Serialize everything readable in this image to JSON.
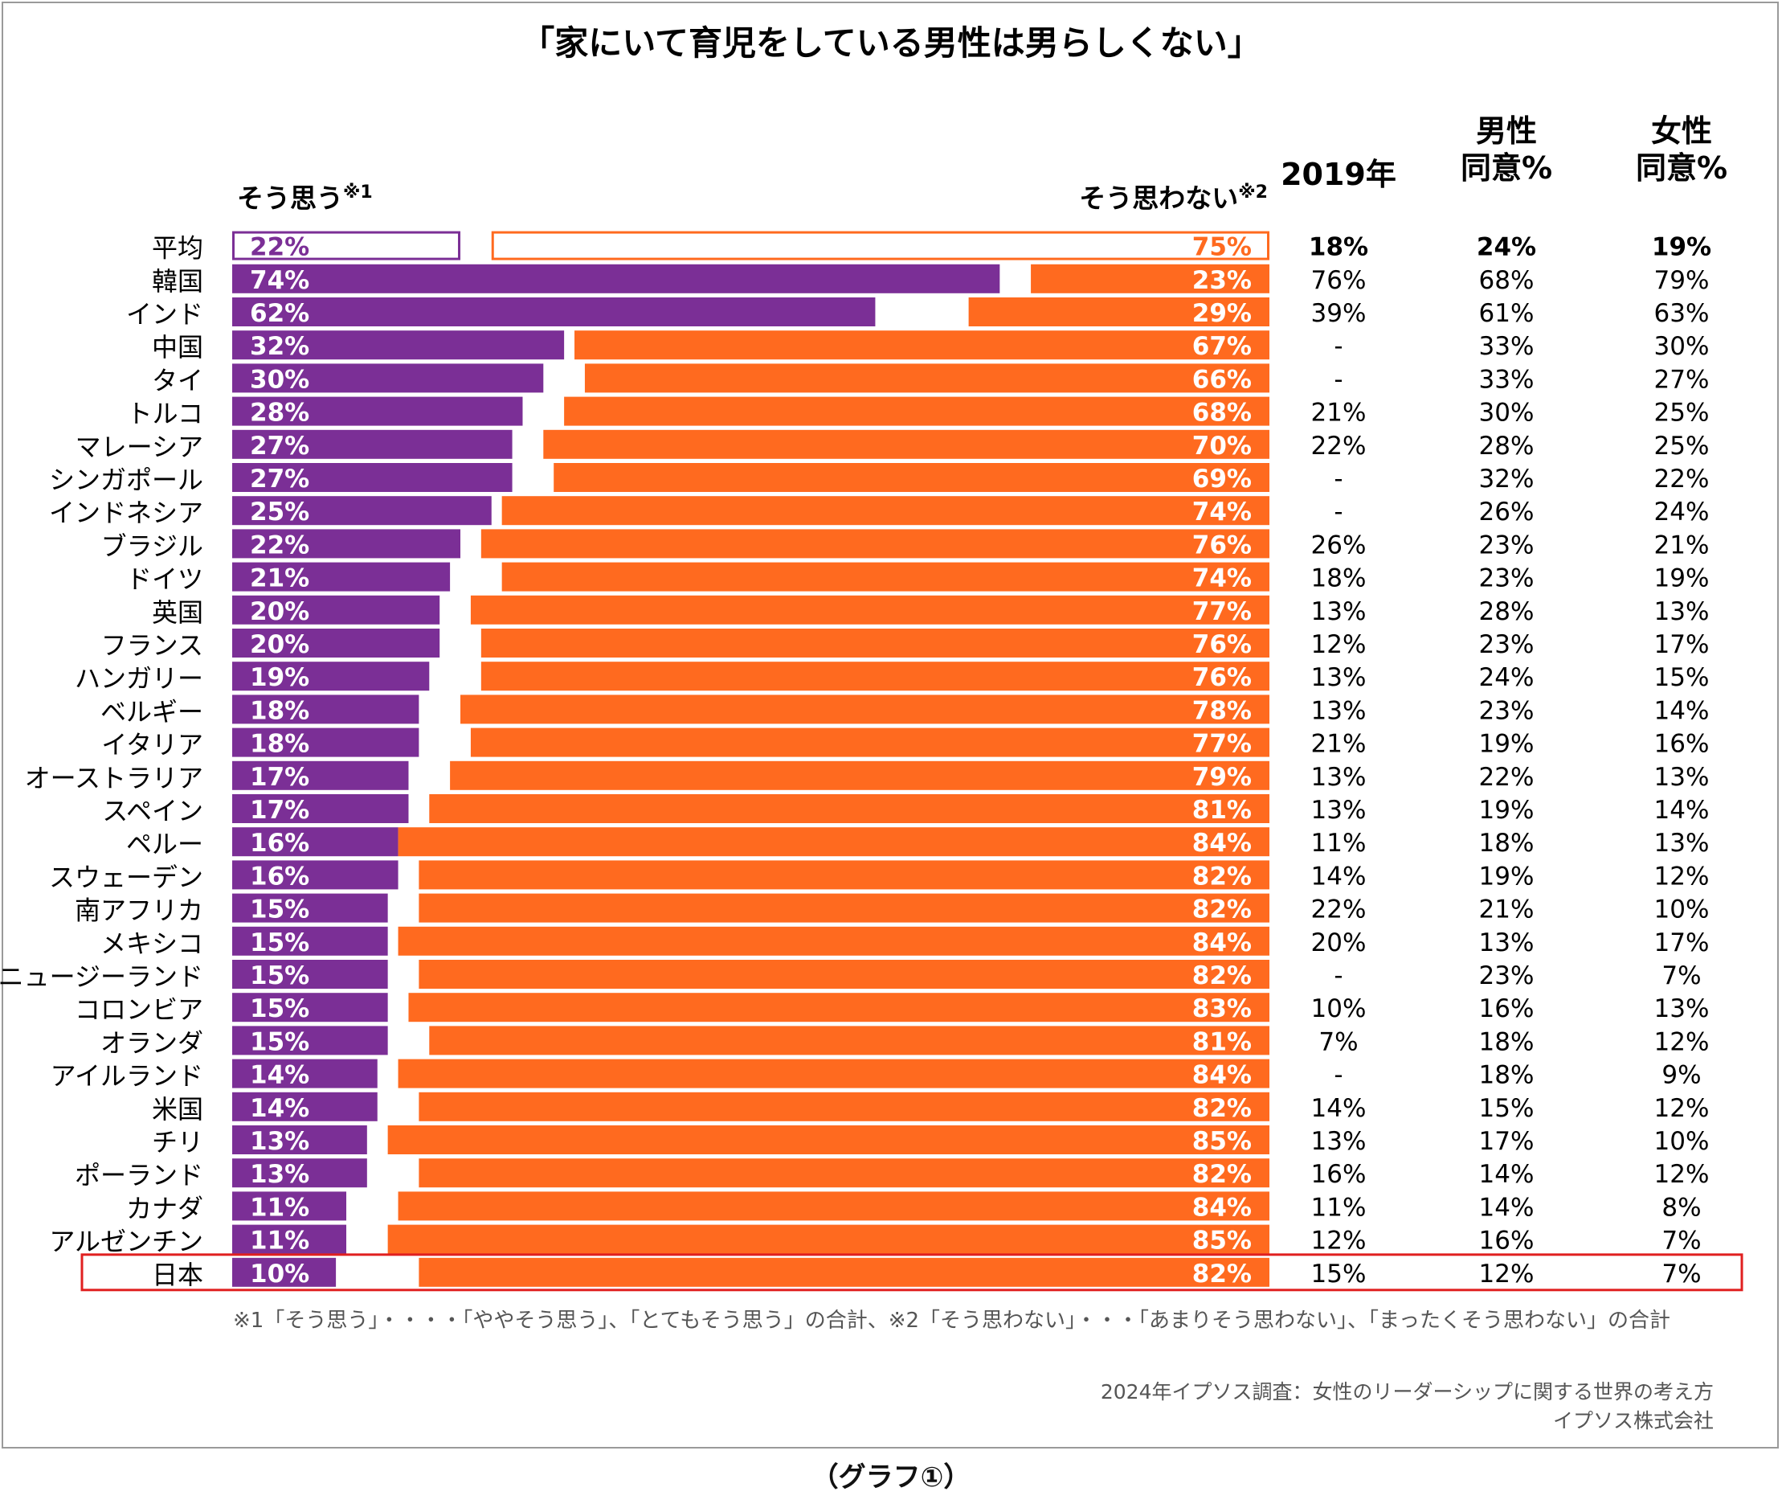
{
  "chart_data": {
    "type": "bar",
    "title": "「家にいて育児をしている男性は男らしくない」",
    "agree_label": "そう思う",
    "agree_mark": "※1",
    "disagree_label": "そう思わない",
    "disagree_mark": "※2",
    "col_2019_label": "2019年",
    "col_male_label_1": "男性",
    "col_male_label_2": "同意%",
    "col_female_label_1": "女性",
    "col_female_label_2": "同意%",
    "xlim": [
      0,
      100
    ],
    "series": [
      {
        "name": "そう思う",
        "color": "#7b2f96"
      },
      {
        "name": "そう思わない",
        "color": "#ff6a1f"
      }
    ],
    "categories": [
      "平均",
      "韓国",
      "インド",
      "中国",
      "タイ",
      "トルコ",
      "マレーシア",
      "シンガポール",
      "インドネシア",
      "ブラジル",
      "ドイツ",
      "英国",
      "フランス",
      "ハンガリー",
      "ベルギー",
      "イタリア",
      "オーストラリア",
      "スペイン",
      "ペルー",
      "スウェーデン",
      "南アフリカ",
      "メキシコ",
      "ニュージーランド",
      "コロンビア",
      "オランダ",
      "アイルランド",
      "米国",
      "チリ",
      "ポーランド",
      "カナダ",
      "アルゼンチン",
      "日本"
    ],
    "agree": [
      22,
      74,
      62,
      32,
      30,
      28,
      27,
      27,
      25,
      22,
      21,
      20,
      20,
      19,
      18,
      18,
      17,
      17,
      16,
      16,
      15,
      15,
      15,
      15,
      15,
      14,
      14,
      13,
      13,
      11,
      11,
      10
    ],
    "disagree": [
      75,
      23,
      29,
      67,
      66,
      68,
      70,
      69,
      74,
      76,
      74,
      77,
      76,
      76,
      78,
      77,
      79,
      81,
      84,
      82,
      82,
      84,
      82,
      83,
      81,
      84,
      82,
      85,
      82,
      84,
      85,
      82
    ],
    "y2019": [
      "18%",
      "76%",
      "39%",
      "-",
      "-",
      "21%",
      "22%",
      "-",
      "-",
      "26%",
      "18%",
      "13%",
      "12%",
      "13%",
      "13%",
      "21%",
      "13%",
      "13%",
      "11%",
      "14%",
      "22%",
      "20%",
      "-",
      "10%",
      "7%",
      "-",
      "14%",
      "13%",
      "16%",
      "11%",
      "12%",
      "15%"
    ],
    "male": [
      "24%",
      "68%",
      "61%",
      "33%",
      "33%",
      "30%",
      "28%",
      "32%",
      "26%",
      "23%",
      "23%",
      "28%",
      "23%",
      "24%",
      "23%",
      "19%",
      "22%",
      "19%",
      "18%",
      "19%",
      "21%",
      "13%",
      "23%",
      "16%",
      "18%",
      "18%",
      "15%",
      "17%",
      "14%",
      "14%",
      "16%",
      "12%"
    ],
    "female": [
      "19%",
      "79%",
      "63%",
      "30%",
      "27%",
      "25%",
      "25%",
      "22%",
      "24%",
      "21%",
      "19%",
      "13%",
      "17%",
      "15%",
      "14%",
      "16%",
      "13%",
      "14%",
      "13%",
      "12%",
      "10%",
      "17%",
      "7%",
      "13%",
      "12%",
      "9%",
      "12%",
      "10%",
      "12%",
      "8%",
      "7%",
      "7%"
    ],
    "highlight": "日本",
    "highlight_color": "#e02020",
    "footnote": "※1「そう思う」・・・・「ややそう思う」、「とてもそう思う」の合計、※2「そう思わない」・・・「あまりそう思わない」、「まったくそう思わない」の合計",
    "source_line1": "2024年イプソス調査：女性のリーダーシップに関する世界の考え方",
    "source_line2": "イプソス株式会社"
  },
  "caption": "（グラフ①）"
}
